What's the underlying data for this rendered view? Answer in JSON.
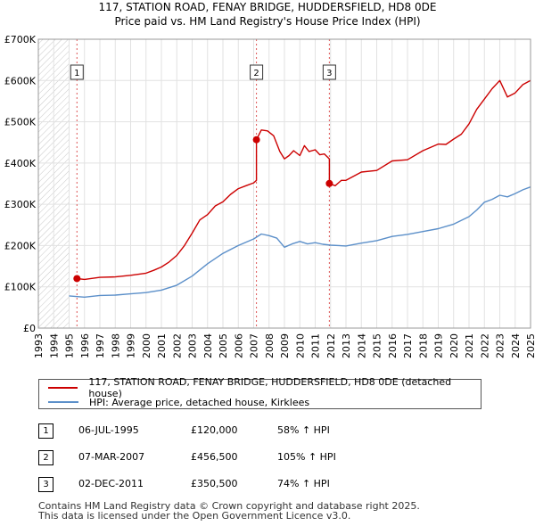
{
  "chart_data": {
    "type": "line",
    "title": "117, STATION ROAD, FENAY BRIDGE, HUDDERSFIELD, HD8 0DE",
    "subtitle": "Price paid vs. HM Land Registry's House Price Index (HPI)",
    "xlim": [
      1993,
      2025
    ],
    "ylim": [
      0,
      700000
    ],
    "x_ticks": [
      "1993",
      "1994",
      "1995",
      "1996",
      "1997",
      "1998",
      "1999",
      "2000",
      "2001",
      "2002",
      "2003",
      "2004",
      "2005",
      "2006",
      "2007",
      "2008",
      "2009",
      "2010",
      "2011",
      "2012",
      "2013",
      "2014",
      "2015",
      "2016",
      "2017",
      "2018",
      "2019",
      "2020",
      "2021",
      "2022",
      "2023",
      "2024",
      "2025"
    ],
    "y_ticks": [
      {
        "value": 0,
        "label": "£0"
      },
      {
        "value": 100000,
        "label": "£100K"
      },
      {
        "value": 200000,
        "label": "£200K"
      },
      {
        "value": 300000,
        "label": "£300K"
      },
      {
        "value": 400000,
        "label": "£400K"
      },
      {
        "value": 500000,
        "label": "£500K"
      },
      {
        "value": 600000,
        "label": "£600K"
      },
      {
        "value": 700000,
        "label": "£700K"
      }
    ],
    "grid": true,
    "hatched_before": 1995.0,
    "series": [
      {
        "name": "117, STATION ROAD, FENAY BRIDGE, HUDDERSFIELD, HD8 0DE (detached house)",
        "color": "#cc0000",
        "x": [
          1995.51,
          1996,
          1997,
          1998,
          1999,
          2000,
          2000.5,
          2001,
          2001.5,
          2002,
          2002.5,
          2003,
          2003.5,
          2004,
          2004.5,
          2005,
          2005.5,
          2006,
          2006.5,
          2007.0,
          2007.18,
          2007.18,
          2007.5,
          2007.9,
          2008.3,
          2008.7,
          2009.0,
          2009.3,
          2009.6,
          2010.0,
          2010.3,
          2010.6,
          2011.0,
          2011.3,
          2011.6,
          2011.92,
          2011.92,
          2012.3,
          2012.7,
          2013,
          2014,
          2015,
          2016,
          2017,
          2018,
          2019,
          2019.5,
          2020,
          2020.5,
          2021,
          2021.5,
          2022,
          2022.5,
          2023,
          2023.5,
          2024,
          2024.5,
          2025
        ],
        "y": [
          120000,
          118000,
          123000,
          124000,
          128000,
          133000,
          140000,
          148000,
          160000,
          176000,
          200000,
          230000,
          262000,
          275000,
          296000,
          306000,
          324000,
          338000,
          345000,
          352000,
          358000,
          456500,
          480000,
          478000,
          466000,
          428000,
          410000,
          418000,
          430000,
          418000,
          442000,
          428000,
          432000,
          420000,
          422000,
          410000,
          350500,
          345000,
          358000,
          358000,
          378000,
          382000,
          405000,
          408000,
          430000,
          446000,
          445000,
          458000,
          470000,
          495000,
          530000,
          555000,
          580000,
          600000,
          560000,
          570000,
          590000,
          600000
        ]
      },
      {
        "name": "HPI: Average price, detached house, Kirklees",
        "color": "#5b8fc9",
        "x": [
          1995,
          1996,
          1997,
          1998,
          1999,
          2000,
          2001,
          2002,
          2003,
          2004,
          2005,
          2006,
          2007,
          2007.5,
          2008,
          2008.5,
          2009,
          2009.5,
          2010,
          2010.5,
          2011,
          2011.5,
          2012,
          2013,
          2014,
          2015,
          2016,
          2017,
          2018,
          2019,
          2020,
          2021,
          2021.5,
          2022,
          2022.5,
          2023,
          2023.5,
          2024,
          2024.5,
          2025
        ],
        "y": [
          78000,
          75000,
          79000,
          80000,
          83000,
          86000,
          92000,
          104000,
          126000,
          156000,
          181000,
          200000,
          216000,
          228000,
          224000,
          218000,
          196000,
          204000,
          210000,
          204000,
          207000,
          203000,
          201000,
          199000,
          206000,
          212000,
          222000,
          227000,
          234000,
          241000,
          252000,
          270000,
          286000,
          305000,
          312000,
          322000,
          318000,
          326000,
          335000,
          342000
        ]
      }
    ],
    "sales": [
      {
        "num": "1",
        "x": 1995.51,
        "price": 120000
      },
      {
        "num": "2",
        "x": 2007.18,
        "price": 456500
      },
      {
        "num": "3",
        "x": 2011.92,
        "price": 350500
      }
    ]
  },
  "legend": {
    "items": [
      {
        "label": "117, STATION ROAD, FENAY BRIDGE, HUDDERSFIELD, HD8 0DE (detached house)",
        "color": "#cc0000"
      },
      {
        "label": "HPI: Average price, detached house, Kirklees",
        "color": "#5b8fc9"
      }
    ]
  },
  "sales_table": [
    {
      "num": "1",
      "date": "06-JUL-1995",
      "price": "£120,000",
      "hpi": "58% ↑ HPI"
    },
    {
      "num": "2",
      "date": "07-MAR-2007",
      "price": "£456,500",
      "hpi": "105% ↑ HPI"
    },
    {
      "num": "3",
      "date": "02-DEC-2011",
      "price": "£350,500",
      "hpi": "74% ↑ HPI"
    }
  ],
  "footer": {
    "line1": "Contains HM Land Registry data © Crown copyright and database right 2025.",
    "line2": "This data is licensed under the Open Government Licence v3.0."
  }
}
